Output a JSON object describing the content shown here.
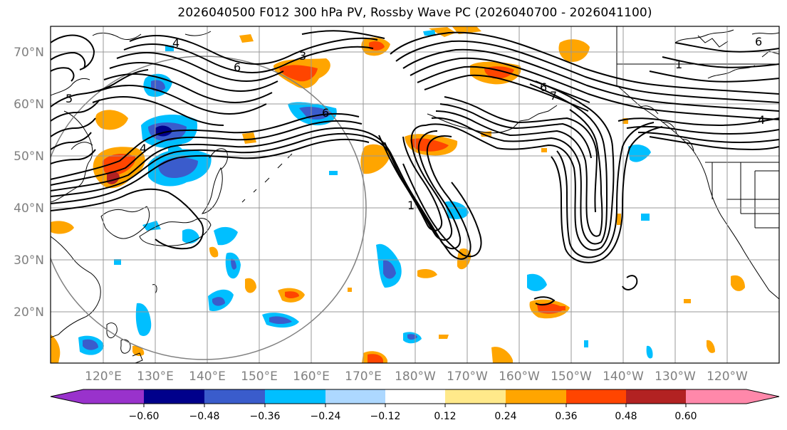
{
  "title": "2026040500 F012 300 hPa PV, Rossby Wave PC (2026040700 - 2026041100)",
  "latitude_labels": [
    "70°N",
    "60°N",
    "50°N",
    "40°N",
    "30°N",
    "20°N"
  ],
  "longitude_labels": [
    "120°E",
    "130°E",
    "140°E",
    "150°E",
    "160°E",
    "170°E",
    "180°W",
    "170°W",
    "160°W",
    "150°W",
    "140°W",
    "130°W",
    "120°W"
  ],
  "contour_labels": [
    "5",
    "6",
    "6",
    "4",
    "6",
    "7",
    "1",
    "4",
    "6",
    "1",
    "3",
    "4"
  ],
  "colorbar": {
    "tick_labels": [
      "−0.60",
      "−0.48",
      "−0.36",
      "−0.24",
      "−0.12",
      "0.12",
      "0.24",
      "0.36",
      "0.48",
      "0.60"
    ],
    "colors": {
      "under": "#9932cc",
      "neg_060": "#00008b",
      "neg_048": "#3a5ccc",
      "neg_036": "#00bfff",
      "neg_024": "#add8ff",
      "neutral": "#ffffff",
      "pos_012": "#ffe98a",
      "pos_024": "#ffa500",
      "pos_036": "#ff4500",
      "pos_048": "#b22222",
      "over": "#ff88aa"
    }
  }
}
